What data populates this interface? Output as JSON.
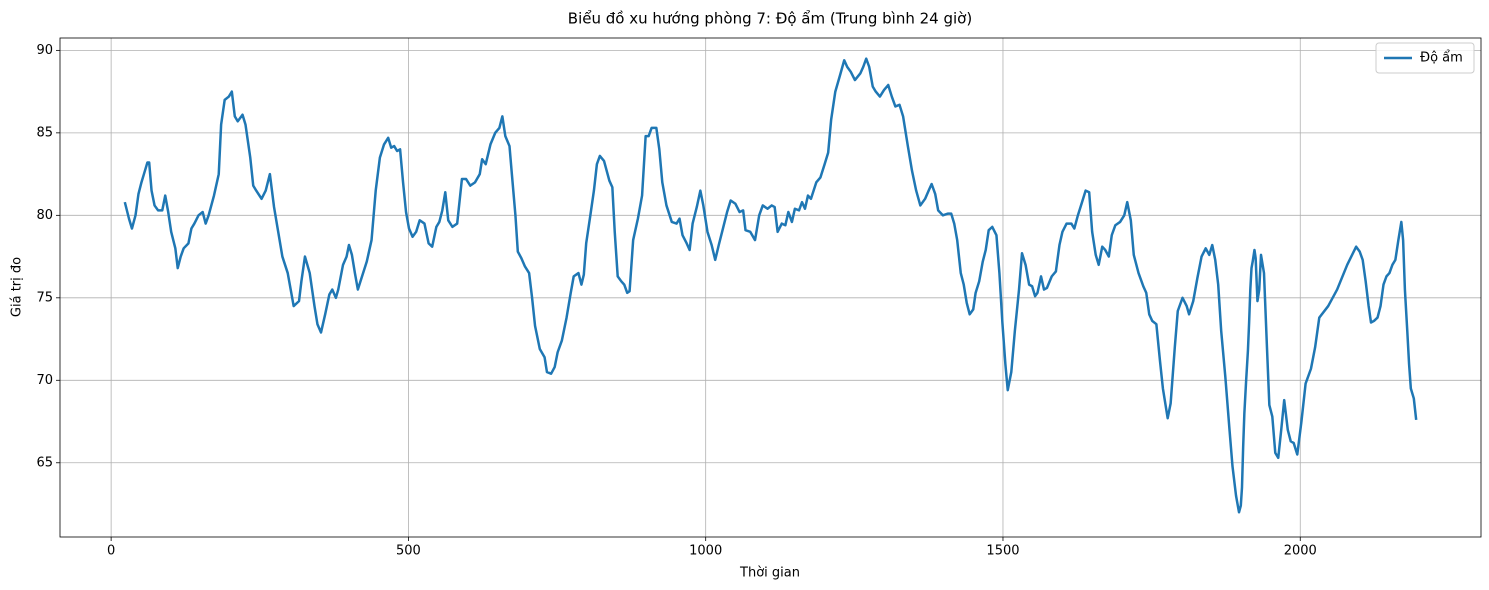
{
  "chart_data": {
    "type": "line",
    "title": "Biểu đồ xu hướng phòng 7: Độ ẩm (Trung bình 24 giờ)",
    "x_label": "Thời gian",
    "y_label": "Giá trị đo",
    "xlim": [
      -86,
      2304
    ],
    "ylim": [
      60.5,
      90.75
    ],
    "xticks": [
      0,
      500,
      1000,
      1500,
      2000
    ],
    "yticks": [
      65,
      70,
      75,
      80,
      85,
      90
    ],
    "grid": true,
    "legend": "upper right",
    "x": [
      23,
      30,
      35,
      41,
      46,
      51,
      56,
      61,
      64,
      68,
      73,
      79,
      86,
      91,
      96,
      101,
      108,
      112,
      117,
      122,
      130,
      135,
      140,
      147,
      154,
      159,
      164,
      173,
      181,
      185,
      191,
      198,
      203,
      208,
      213,
      221,
      226,
      234,
      239,
      244,
      253,
      260,
      267,
      274,
      281,
      288,
      297,
      302,
      307,
      316,
      320,
      326,
      334,
      342,
      347,
      353,
      360,
      367,
      372,
      378,
      382,
      390,
      396,
      400,
      405,
      410,
      415,
      422,
      430,
      438,
      445,
      452,
      459,
      466,
      471,
      476,
      481,
      486,
      491,
      496,
      501,
      507,
      513,
      519,
      527,
      534,
      540,
      547,
      552,
      557,
      562,
      567,
      574,
      582,
      590,
      597,
      604,
      612,
      620,
      624,
      630,
      638,
      646,
      653,
      658,
      663,
      670,
      674,
      680,
      684,
      690,
      696,
      703,
      708,
      713,
      721,
      729,
      733,
      740,
      746,
      751,
      758,
      766,
      773,
      778,
      786,
      791,
      795,
      799,
      806,
      812,
      817,
      822,
      829,
      838,
      843,
      847,
      852,
      858,
      863,
      868,
      872,
      878,
      886,
      893,
      899,
      904,
      909,
      917,
      922,
      927,
      934,
      943,
      951,
      956,
      961,
      968,
      973,
      978,
      985,
      991,
      996,
      1003,
      1010,
      1016,
      1022,
      1029,
      1036,
      1042,
      1050,
      1057,
      1063,
      1067,
      1075,
      1083,
      1090,
      1096,
      1104,
      1111,
      1116,
      1121,
      1128,
      1134,
      1139,
      1145,
      1150,
      1157,
      1162,
      1167,
      1172,
      1177,
      1186,
      1193,
      1200,
      1206,
      1211,
      1218,
      1226,
      1233,
      1238,
      1244,
      1251,
      1260,
      1265,
      1270,
      1275,
      1281,
      1286,
      1293,
      1300,
      1307,
      1313,
      1319,
      1326,
      1332,
      1340,
      1347,
      1354,
      1361,
      1369,
      1375,
      1380,
      1386,
      1391,
      1399,
      1407,
      1413,
      1418,
      1423,
      1429,
      1434,
      1439,
      1444,
      1450,
      1454,
      1460,
      1466,
      1471,
      1476,
      1482,
      1489,
      1494,
      1499,
      1504,
      1508,
      1514,
      1520,
      1527,
      1532,
      1538,
      1544,
      1549,
      1554,
      1558,
      1564,
      1569,
      1574,
      1582,
      1589,
      1595,
      1600,
      1607,
      1615,
      1620,
      1626,
      1633,
      1639,
      1645,
      1650,
      1656,
      1661,
      1667,
      1672,
      1678,
      1683,
      1689,
      1697,
      1704,
      1709,
      1715,
      1720,
      1728,
      1736,
      1741,
      1746,
      1751,
      1758,
      1764,
      1769,
      1777,
      1782,
      1789,
      1794,
      1802,
      1809,
      1813,
      1820,
      1827,
      1834,
      1841,
      1847,
      1852,
      1857,
      1862,
      1867,
      1874,
      1881,
      1886,
      1892,
      1897,
      1900,
      1902,
      1904,
      1906,
      1909,
      1912,
      1914,
      1916,
      1918,
      1920,
      1923,
      1925,
      1928,
      1931,
      1934,
      1939,
      1944,
      1948,
      1953,
      1958,
      1963,
      1968,
      1973,
      1979,
      1984,
      1989,
      1995,
      2002,
      2009,
      2018,
      2025,
      2032,
      2047,
      2062,
      2079,
      2094,
      2100,
      2105,
      2110,
      2115,
      2119,
      2124,
      2130,
      2135,
      2140,
      2145,
      2150,
      2155,
      2160,
      2165,
      2170,
      2173,
      2176,
      2180,
      2183,
      2186,
      2191,
      2195
    ],
    "series": [
      {
        "name": "Độ ẩm",
        "color": "#1f77b4",
        "values": [
          80.8,
          79.8,
          79.2,
          80.0,
          81.3,
          82.0,
          82.6,
          83.2,
          83.2,
          81.5,
          80.6,
          80.3,
          80.3,
          81.2,
          80.2,
          79.0,
          78.0,
          76.8,
          77.5,
          78.0,
          78.3,
          79.2,
          79.5,
          80.0,
          80.2,
          79.5,
          80.0,
          81.2,
          82.5,
          85.5,
          87.0,
          87.2,
          87.5,
          86.0,
          85.7,
          86.1,
          85.5,
          83.5,
          81.8,
          81.5,
          81.0,
          81.5,
          82.5,
          80.5,
          79.0,
          77.5,
          76.5,
          75.5,
          74.5,
          74.8,
          76.0,
          77.5,
          76.5,
          74.5,
          73.4,
          72.9,
          74.0,
          75.2,
          75.5,
          75.0,
          75.5,
          77.0,
          77.5,
          78.2,
          77.6,
          76.5,
          75.5,
          76.3,
          77.2,
          78.5,
          81.5,
          83.5,
          84.3,
          84.7,
          84.1,
          84.2,
          83.9,
          84.0,
          82.0,
          80.2,
          79.2,
          78.7,
          79.0,
          79.7,
          79.5,
          78.3,
          78.1,
          79.3,
          79.6,
          80.3,
          81.4,
          79.7,
          79.3,
          79.5,
          82.2,
          82.2,
          81.8,
          82.0,
          82.5,
          83.4,
          83.1,
          84.3,
          85.0,
          85.3,
          86.0,
          84.8,
          84.2,
          82.5,
          80.0,
          77.8,
          77.4,
          76.9,
          76.5,
          75.0,
          73.3,
          71.9,
          71.4,
          70.5,
          70.4,
          70.8,
          71.7,
          72.4,
          73.8,
          75.3,
          76.3,
          76.5,
          75.8,
          76.4,
          78.3,
          80.0,
          81.5,
          83.1,
          83.6,
          83.3,
          82.1,
          81.7,
          79.0,
          76.3,
          76.0,
          75.8,
          75.3,
          75.4,
          78.5,
          79.8,
          81.2,
          84.8,
          84.8,
          85.3,
          85.3,
          84.0,
          82.0,
          80.6,
          79.6,
          79.5,
          79.8,
          78.8,
          78.3,
          77.9,
          79.5,
          80.5,
          81.5,
          80.6,
          79.0,
          78.2,
          77.3,
          78.2,
          79.2,
          80.2,
          80.9,
          80.7,
          80.2,
          80.3,
          79.1,
          79.0,
          78.5,
          80.0,
          80.6,
          80.4,
          80.6,
          80.5,
          79.0,
          79.5,
          79.4,
          80.2,
          79.6,
          80.4,
          80.3,
          80.8,
          80.4,
          81.2,
          81.0,
          82.0,
          82.3,
          83.1,
          83.8,
          85.8,
          87.5,
          88.5,
          89.4,
          89.0,
          88.7,
          88.2,
          88.6,
          89.0,
          89.5,
          89.0,
          87.8,
          87.5,
          87.2,
          87.6,
          87.9,
          87.2,
          86.6,
          86.7,
          86.0,
          84.2,
          82.7,
          81.5,
          80.6,
          81.0,
          81.5,
          81.9,
          81.3,
          80.3,
          80.0,
          80.1,
          80.1,
          79.5,
          78.5,
          76.5,
          75.8,
          74.7,
          74.0,
          74.3,
          75.3,
          76.0,
          77.2,
          77.9,
          79.1,
          79.3,
          78.8,
          76.5,
          73.5,
          71.0,
          69.4,
          70.5,
          73.0,
          75.5,
          77.7,
          77.0,
          75.8,
          75.7,
          75.1,
          75.3,
          76.3,
          75.5,
          75.6,
          76.3,
          76.6,
          78.2,
          79.0,
          79.5,
          79.5,
          79.2,
          80.0,
          80.8,
          81.5,
          81.4,
          79.0,
          77.6,
          77.0,
          78.1,
          77.9,
          77.5,
          78.8,
          79.4,
          79.6,
          80.0,
          80.8,
          79.7,
          77.6,
          76.5,
          75.7,
          75.3,
          74.0,
          73.6,
          73.4,
          71.2,
          69.5,
          67.7,
          68.6,
          72.0,
          74.2,
          75.0,
          74.5,
          74.0,
          74.8,
          76.2,
          77.5,
          78.0,
          77.6,
          78.2,
          77.3,
          75.8,
          73.0,
          70.2,
          67.0,
          64.8,
          63.0,
          62.0,
          62.4,
          63.5,
          66.0,
          68.0,
          70.0,
          71.8,
          73.5,
          75.5,
          76.8,
          77.2,
          77.9,
          77.4,
          74.8,
          75.5,
          77.6,
          76.5,
          72.0,
          68.5,
          67.8,
          65.6,
          65.3,
          67.0,
          68.8,
          67.0,
          66.3,
          66.2,
          65.5,
          67.5,
          69.8,
          70.7,
          72.0,
          73.8,
          74.5,
          75.5,
          77.0,
          78.1,
          77.8,
          77.3,
          76.0,
          74.5,
          73.5,
          73.6,
          73.8,
          74.5,
          75.8,
          76.3,
          76.5,
          77.0,
          77.3,
          78.5,
          79.6,
          78.5,
          75.5,
          73.0,
          71.0,
          69.5,
          68.9,
          67.6
        ]
      }
    ]
  }
}
